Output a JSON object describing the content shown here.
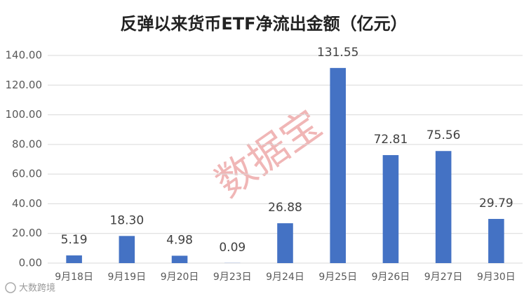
{
  "chart_data": {
    "type": "bar",
    "title": "反弹以来货币ETF净流出金额（亿元）",
    "categories": [
      "9月18日",
      "9月19日",
      "9月20日",
      "9月23日",
      "9月24日",
      "9月25日",
      "9月26日",
      "9月27日",
      "9月30日"
    ],
    "values": [
      5.19,
      18.3,
      4.98,
      0.09,
      26.88,
      131.55,
      72.81,
      75.56,
      29.79
    ],
    "value_labels": [
      "5.19",
      "18.30",
      "4.98",
      "0.09",
      "26.88",
      "131.55",
      "72.81",
      "75.56",
      "29.79"
    ],
    "color": "#4472c4",
    "ylim": [
      0,
      140
    ],
    "yticks": [
      {
        "value": 0,
        "label": "0.00"
      },
      {
        "value": 20,
        "label": "20.00"
      },
      {
        "value": 40,
        "label": "40.00"
      },
      {
        "value": 60,
        "label": "60.00"
      },
      {
        "value": 80,
        "label": "80.00"
      },
      {
        "value": 100,
        "label": "100.00"
      },
      {
        "value": 120,
        "label": "120.00"
      },
      {
        "value": 140,
        "label": "140.00"
      }
    ],
    "grid": true,
    "watermark": "数据宝",
    "source": "大数跨境"
  }
}
